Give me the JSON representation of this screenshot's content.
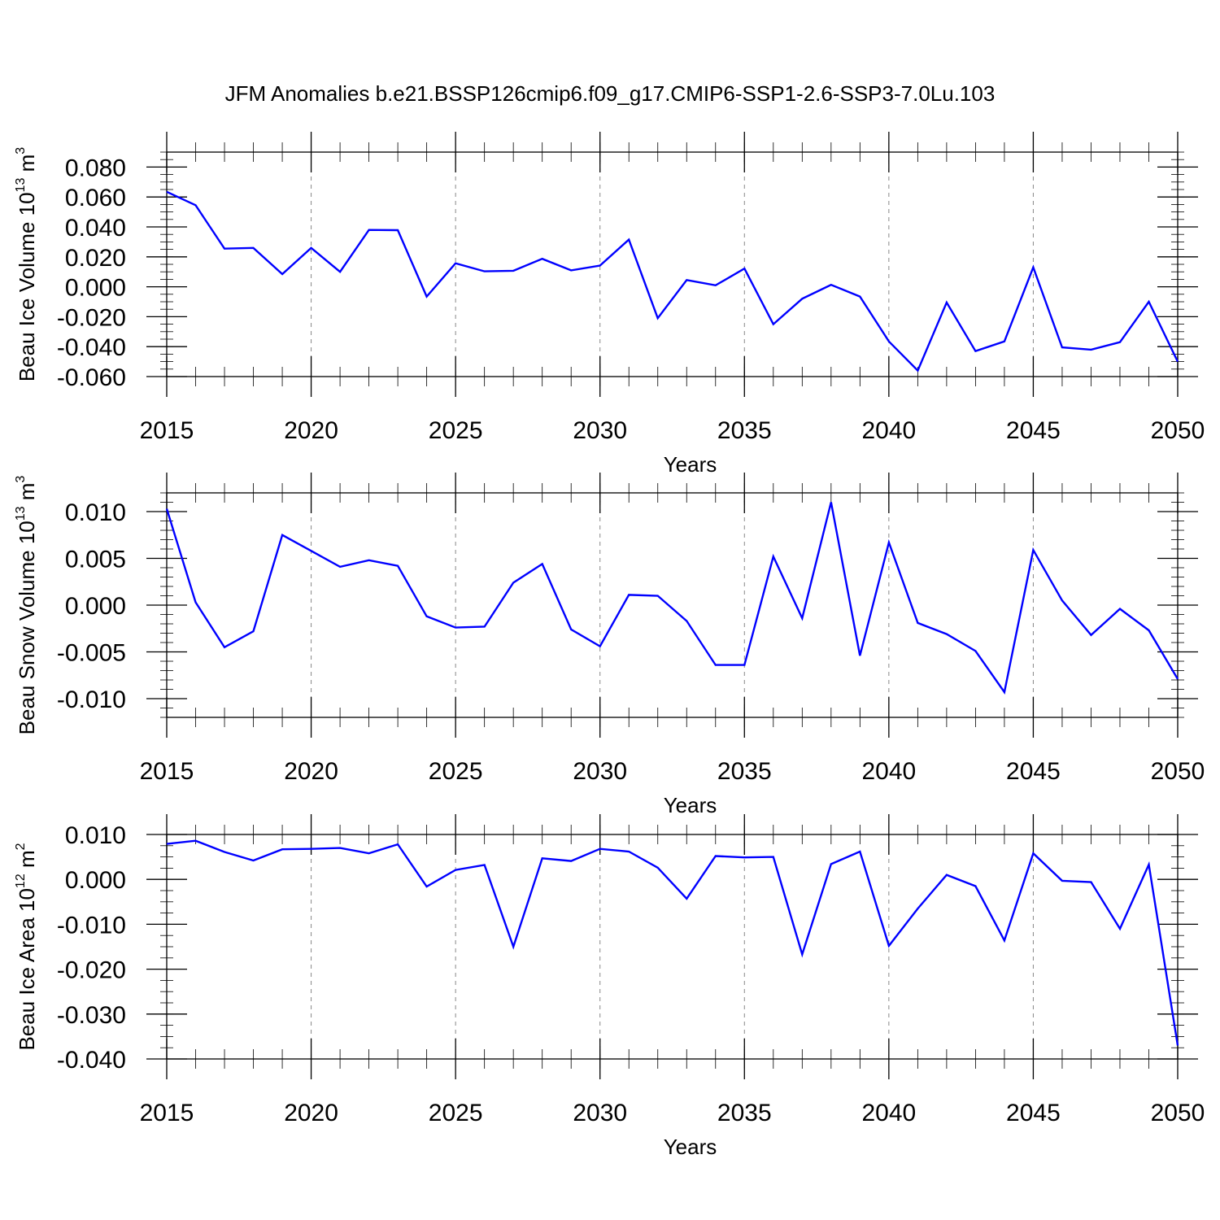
{
  "title": "JFM Anomalies b.e21.BSSP126cmip6.f09_g17.CMIP6-SSP1-2.6-SSP3-7.0Lu.103",
  "colors": {
    "line": "#0000ff",
    "axis": "#000000",
    "grid": "#888888"
  },
  "chart_data": [
    {
      "type": "line",
      "xlabel": "Years",
      "ylabel": {
        "text": "Beau Ice Volume 10",
        "exp": "13",
        "unit": " m",
        "unit_exp": "3"
      },
      "xlim": [
        2015,
        2050
      ],
      "ylim": [
        -0.06,
        0.09
      ],
      "yticks": [
        -0.06,
        -0.04,
        -0.02,
        0.0,
        0.02,
        0.04,
        0.06,
        0.08
      ],
      "ytick_labels": [
        "-0.060",
        "-0.040",
        "-0.020",
        "0.000",
        "0.020",
        "0.040",
        "0.060",
        "0.080"
      ],
      "yminor_step": 0.005,
      "xticks": [
        2015,
        2020,
        2025,
        2030,
        2035,
        2040,
        2045,
        2050
      ],
      "xtick_labels": [
        "2015",
        "2020",
        "2025",
        "2030",
        "2035",
        "2040",
        "2045",
        "2050"
      ],
      "x": [
        2015,
        2016,
        2017,
        2018,
        2019,
        2020,
        2021,
        2022,
        2023,
        2024,
        2025,
        2026,
        2027,
        2028,
        2029,
        2030,
        2031,
        2032,
        2033,
        2034,
        2035,
        2036,
        2037,
        2038,
        2039,
        2040,
        2041,
        2042,
        2043,
        2044,
        2045,
        2046,
        2047,
        2048,
        2049,
        2050
      ],
      "values": [
        0.0635,
        0.0545,
        0.0255,
        0.026,
        0.0085,
        0.026,
        0.01,
        0.038,
        0.0378,
        -0.0065,
        0.0157,
        0.0103,
        0.0107,
        0.0187,
        0.011,
        0.0142,
        0.0315,
        -0.021,
        0.0045,
        0.001,
        0.0122,
        -0.025,
        -0.008,
        0.0013,
        -0.0065,
        -0.0365,
        -0.056,
        -0.0105,
        -0.043,
        -0.0365,
        0.013,
        -0.0405,
        -0.042,
        -0.037,
        -0.01,
        -0.05
      ]
    },
    {
      "type": "line",
      "xlabel": "Years",
      "ylabel": {
        "text": "Beau Snow Volume 10",
        "exp": "13",
        "unit": " m",
        "unit_exp": "3"
      },
      "xlim": [
        2015,
        2050
      ],
      "ylim": [
        -0.012,
        0.012
      ],
      "yticks": [
        -0.01,
        -0.005,
        0.0,
        0.005,
        0.01
      ],
      "ytick_labels": [
        "-0.010",
        "-0.005",
        "0.000",
        "0.005",
        "0.010"
      ],
      "yminor_step": 0.001,
      "xticks": [
        2015,
        2020,
        2025,
        2030,
        2035,
        2040,
        2045,
        2050
      ],
      "xtick_labels": [
        "2015",
        "2020",
        "2025",
        "2030",
        "2035",
        "2040",
        "2045",
        "2050"
      ],
      "x": [
        2015,
        2016,
        2017,
        2018,
        2019,
        2020,
        2021,
        2022,
        2023,
        2024,
        2025,
        2026,
        2027,
        2028,
        2029,
        2030,
        2031,
        2032,
        2033,
        2034,
        2035,
        2036,
        2037,
        2038,
        2039,
        2040,
        2041,
        2042,
        2043,
        2044,
        2045,
        2046,
        2047,
        2048,
        2049,
        2050
      ],
      "values": [
        0.0103,
        0.0003,
        -0.0045,
        -0.0028,
        0.0075,
        0.0058,
        0.0041,
        0.0048,
        0.0042,
        -0.0012,
        -0.0024,
        -0.0023,
        0.0024,
        0.0044,
        -0.0026,
        -0.0044,
        0.0011,
        0.001,
        -0.0017,
        -0.0064,
        -0.0064,
        0.0052,
        -0.0014,
        0.011,
        -0.0054,
        0.0067,
        -0.0019,
        -0.0031,
        -0.0049,
        -0.0093,
        0.0059,
        0.0005,
        -0.0032,
        -0.0004,
        -0.0027,
        -0.0079
      ]
    },
    {
      "type": "line",
      "xlabel": "Years",
      "ylabel": {
        "text": "Beau Ice Area 10",
        "exp": "12",
        "unit": " m",
        "unit_exp": "2"
      },
      "xlim": [
        2015,
        2050
      ],
      "ylim": [
        -0.04,
        0.01
      ],
      "yticks": [
        -0.04,
        -0.03,
        -0.02,
        -0.01,
        0.0,
        0.01
      ],
      "ytick_labels": [
        "-0.040",
        "-0.030",
        "-0.020",
        "-0.010",
        "0.000",
        "0.010"
      ],
      "yminor_step": 0.0025,
      "xticks": [
        2015,
        2020,
        2025,
        2030,
        2035,
        2040,
        2045,
        2050
      ],
      "xtick_labels": [
        "2015",
        "2020",
        "2025",
        "2030",
        "2035",
        "2040",
        "2045",
        "2050"
      ],
      "x": [
        2015,
        2016,
        2017,
        2018,
        2019,
        2020,
        2021,
        2022,
        2023,
        2024,
        2025,
        2026,
        2027,
        2028,
        2029,
        2030,
        2031,
        2032,
        2033,
        2034,
        2035,
        2036,
        2037,
        2038,
        2039,
        2040,
        2041,
        2042,
        2043,
        2044,
        2045,
        2046,
        2047,
        2048,
        2049,
        2050
      ],
      "values": [
        0.0079,
        0.0086,
        0.0061,
        0.0042,
        0.0067,
        0.0068,
        0.007,
        0.0058,
        0.0078,
        -0.0016,
        0.0021,
        0.0032,
        -0.015,
        0.0047,
        0.0041,
        0.0068,
        0.0062,
        0.0026,
        -0.0043,
        0.0052,
        0.0049,
        0.005,
        -0.0167,
        0.0034,
        0.0062,
        -0.0148,
        -0.0065,
        0.001,
        -0.0015,
        -0.0136,
        0.0058,
        -0.0003,
        -0.0006,
        -0.011,
        0.0033,
        -0.037
      ]
    }
  ]
}
